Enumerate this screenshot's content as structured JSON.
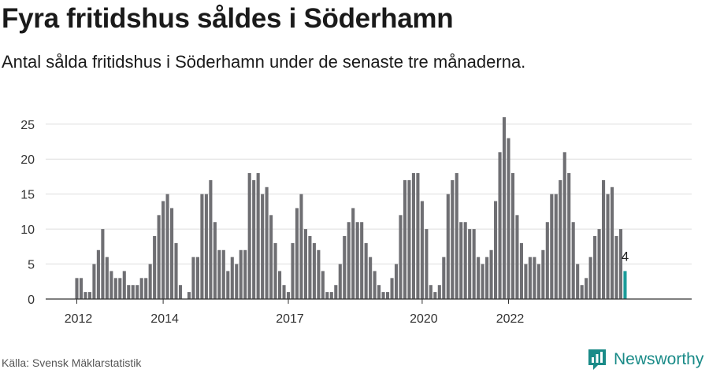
{
  "title": "Fyra fritidshus såldes i Söderhamn",
  "subtitle": "Antal sålda fritidshus i Söderhamn under de senaste tre månaderna.",
  "source": "Källa: Svensk Mäklarstatistik",
  "brand": {
    "name": "Newsworthy",
    "icon": "newsworthy-logo-icon",
    "color": "#1a8b88"
  },
  "colors": {
    "bar": "#6f6f73",
    "highlight": "#1a9c99",
    "grid": "#dddddd",
    "axis": "#333333"
  },
  "chart_data": {
    "type": "bar",
    "ylim": [
      0,
      27
    ],
    "yticks": [
      0,
      5,
      10,
      15,
      20,
      25
    ],
    "xticks": [
      {
        "label": "2012",
        "index": 0
      },
      {
        "label": "2014",
        "index": 20
      },
      {
        "label": "2017",
        "index": 49
      },
      {
        "label": "2020",
        "index": 80
      },
      {
        "label": "2022",
        "index": 100
      }
    ],
    "values": [
      3,
      3,
      1,
      1,
      5,
      7,
      10,
      6,
      4,
      3,
      3,
      4,
      2,
      2,
      2,
      3,
      3,
      5,
      9,
      12,
      14,
      15,
      13,
      8,
      2,
      0,
      1,
      6,
      6,
      15,
      15,
      17,
      11,
      7,
      7,
      4,
      6,
      5,
      7,
      7,
      18,
      17,
      18,
      15,
      16,
      12,
      8,
      4,
      2,
      1,
      8,
      13,
      15,
      10,
      9,
      8,
      7,
      4,
      1,
      1,
      2,
      5,
      9,
      11,
      13,
      11,
      11,
      8,
      6,
      4,
      2,
      1,
      1,
      3,
      5,
      12,
      17,
      17,
      18,
      18,
      14,
      10,
      2,
      1,
      2,
      6,
      15,
      17,
      18,
      11,
      11,
      10,
      10,
      6,
      5,
      6,
      7,
      14,
      21,
      26,
      23,
      18,
      12,
      8,
      5,
      6,
      6,
      5,
      7,
      11,
      15,
      15,
      17,
      21,
      18,
      11,
      5,
      2,
      3,
      6,
      9,
      10,
      17,
      15,
      16,
      9,
      10,
      4
    ],
    "highlight_last": true,
    "data_labels": [
      {
        "index": 127,
        "text": "4"
      }
    ],
    "grid": true
  }
}
